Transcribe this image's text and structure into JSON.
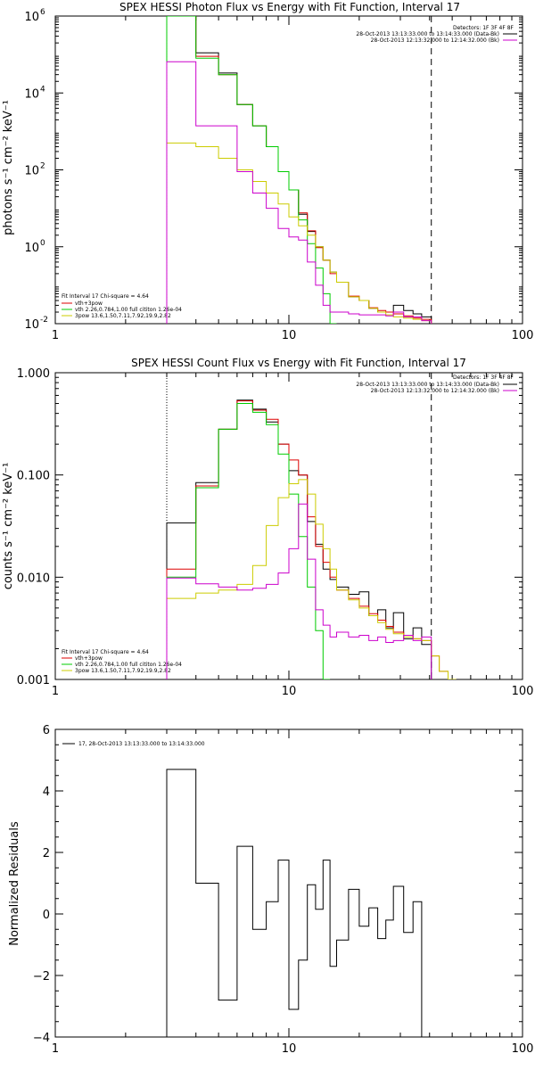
{
  "chart_data": [
    {
      "type": "line",
      "title": "SPEX HESSI Photon Flux vs Energy with Fit Function, Interval 17",
      "ylabel": "photons s⁻¹ cm⁻² keV⁻¹",
      "xscale": "log",
      "yscale": "log",
      "xlim": [
        1,
        100
      ],
      "ylim": [
        0.01,
        1000000
      ],
      "x_ticks": [
        {
          "v": 1,
          "label": "1"
        },
        {
          "v": 10,
          "label": "10"
        },
        {
          "v": 100,
          "label": "100"
        }
      ],
      "y_ticks": [
        {
          "v": 0.01,
          "label": "10",
          "sup": "-2"
        },
        {
          "v": 1,
          "label": "10",
          "sup": "0"
        },
        {
          "v": 100,
          "label": "10",
          "sup": "2"
        },
        {
          "v": 10000,
          "label": "10",
          "sup": "4"
        },
        {
          "v": 1000000,
          "label": "10",
          "sup": "6"
        }
      ],
      "legend_tr": {
        "position": "top-right",
        "header": "Detectors: 1F 3F 4F 8F",
        "entries": [
          {
            "text": "28-Oct-2013 13:13:33.000 to 13:14:33.000 (Data-Bk)",
            "color": "#000000"
          },
          {
            "text": "28-Oct-2013 12:13:32.000 to 12:14:32.000 (Bk)",
            "color": "#cc00cc"
          }
        ]
      },
      "legend_bl": {
        "position": "bottom-left",
        "header": "Fit Interval 17    Chi-square = 4.64",
        "entries": [
          {
            "text": "vth+3pow",
            "color": "#dd0000"
          },
          {
            "text": "vth 2.26,0.784,1.00  full cititon 1.26e-04",
            "color": "#00cc00"
          },
          {
            "text": "3pow 13.6,1.50,7.11,7.92,19.9,2.82",
            "color": "#cccc00"
          }
        ]
      },
      "vlines": [
        {
          "x": 3.0,
          "style": "dotted"
        },
        {
          "x": 40.7,
          "style": "dashed"
        }
      ],
      "edges": [
        3.0,
        4.0,
        5.0,
        6.0,
        7.0,
        8.0,
        9.0,
        10.0,
        11.0,
        12.0,
        13.0,
        14.0,
        15.0,
        16.0,
        18.0,
        20.0,
        22.0,
        24.0,
        26.0,
        28.0,
        31.0,
        34.0,
        37.0,
        40.7,
        44.0,
        48.0
      ],
      "series": [
        {
          "name": "Data-Bk",
          "color": "#000000",
          "values": [
            1000000,
            110000,
            33000,
            5000,
            1400,
            400,
            90,
            30,
            7,
            2.5,
            1,
            0.45,
            0.22,
            0.12,
            0.05,
            0.04,
            0.025,
            0.02,
            0.02,
            0.03,
            0.022,
            0.018,
            0.015
          ]
        },
        {
          "name": "vth+3pow",
          "color": "#dd0000",
          "values": [
            1000000,
            90000,
            30000,
            5000,
            1400,
            400,
            90,
            30,
            7.6,
            2.6,
            0.95,
            0.45,
            0.2,
            0.12,
            0.052,
            0.04,
            0.026,
            0.022,
            0.02,
            0.018,
            0.016,
            0.014,
            0.013
          ]
        },
        {
          "name": "vth",
          "color": "#00cc00",
          "values": [
            1000000,
            80000,
            30000,
            5000,
            1400,
            400,
            90,
            30,
            5,
            1.2,
            0.28,
            0.06,
            0.01
          ]
        },
        {
          "name": "3pow",
          "color": "#cccc00",
          "values": [
            500,
            400,
            200,
            100,
            50,
            25,
            13,
            6,
            3.5,
            2,
            1,
            0.45,
            0.22,
            0.12,
            0.05,
            0.04,
            0.025,
            0.02,
            0.017,
            0.015,
            0.014,
            0.013,
            0.012
          ]
        },
        {
          "name": "Bk",
          "color": "#cc00cc",
          "values": [
            65000,
            1400,
            1400,
            90,
            25,
            10,
            3,
            1.8,
            1.5,
            0.4,
            0.1,
            0.03,
            0.02,
            0.02,
            0.018,
            0.017,
            0.017,
            0.017,
            0.016,
            0.02,
            0.015,
            0.015,
            0.012
          ]
        }
      ]
    },
    {
      "type": "line",
      "title": "SPEX HESSI Count Flux vs Energy with Fit Function, Interval 17",
      "ylabel": "counts s⁻¹ cm⁻² keV⁻¹",
      "xscale": "log",
      "yscale": "log",
      "xlim": [
        1,
        100
      ],
      "ylim": [
        0.001,
        1.0
      ],
      "x_ticks": [
        {
          "v": 1,
          "label": "1"
        },
        {
          "v": 10,
          "label": "10"
        },
        {
          "v": 100,
          "label": "100"
        }
      ],
      "y_ticks": [
        {
          "v": 0.001,
          "label": "0.001"
        },
        {
          "v": 0.01,
          "label": "0.010"
        },
        {
          "v": 0.1,
          "label": "0.100"
        },
        {
          "v": 1.0,
          "label": "1.000"
        }
      ],
      "legend_tr": {
        "position": "top-right",
        "header": "Detectors: 1F 3F 4F 8F",
        "entries": [
          {
            "text": "28-Oct-2013 13:13:33.000 to 13:14:33.000 (Data-Bk)",
            "color": "#000000"
          },
          {
            "text": "28-Oct-2013 12:13:32.000 to 12:14:32.000 (Bk)",
            "color": "#cc00cc"
          }
        ]
      },
      "legend_bl": {
        "position": "bottom-left",
        "header": "Fit Interval 17    Chi-square = 4.64",
        "entries": [
          {
            "text": "vth+3pow",
            "color": "#dd0000"
          },
          {
            "text": "vth 2.26,0.784,1.00  full cititon 1.26e-04",
            "color": "#00cc00"
          },
          {
            "text": "3pow 13.6,1.50,7.11,7.92,19.9,2.82",
            "color": "#cccc00"
          }
        ]
      },
      "vlines": [
        {
          "x": 3.0,
          "style": "dotted"
        },
        {
          "x": 40.7,
          "style": "dashed"
        }
      ],
      "edges": [
        3.0,
        4.0,
        5.0,
        6.0,
        7.0,
        8.0,
        9.0,
        10.0,
        11.0,
        12.0,
        13.0,
        14.0,
        15.0,
        16.0,
        18.0,
        20.0,
        22.0,
        24.0,
        26.0,
        28.0,
        31.0,
        34.0,
        37.0,
        40.7,
        44.0,
        48.0,
        52.0
      ],
      "series": [
        {
          "name": "Data-Bk",
          "color": "#000000",
          "values": [
            0.034,
            0.084,
            0.28,
            0.54,
            0.44,
            0.33,
            0.2,
            0.11,
            0.1,
            0.035,
            0.021,
            0.012,
            0.0095,
            0.008,
            0.0068,
            0.0072,
            0.0042,
            0.0048,
            0.0032,
            0.0045,
            0.0025,
            0.0032,
            0.0022
          ]
        },
        {
          "name": "vth+3pow",
          "color": "#dd0000",
          "values": [
            0.012,
            0.078,
            0.28,
            0.53,
            0.43,
            0.35,
            0.2,
            0.14,
            0.1,
            0.039,
            0.02,
            0.014,
            0.01,
            0.0075,
            0.0062,
            0.0052,
            0.0044,
            0.0038,
            0.0033,
            0.0029,
            0.0027,
            0.0025,
            0.0024,
            0.0017,
            0.0012,
            0.001
          ]
        },
        {
          "name": "vth",
          "color": "#00cc00",
          "values": [
            0.01,
            0.075,
            0.28,
            0.5,
            0.41,
            0.31,
            0.16,
            0.065,
            0.025,
            0.008,
            0.003,
            0.001
          ]
        },
        {
          "name": "3pow",
          "color": "#cccc00",
          "values": [
            0.0062,
            0.007,
            0.0075,
            0.0085,
            0.013,
            0.032,
            0.06,
            0.082,
            0.09,
            0.065,
            0.033,
            0.019,
            0.012,
            0.0075,
            0.006,
            0.005,
            0.0042,
            0.0036,
            0.0031,
            0.0028,
            0.0026,
            0.0025,
            0.0024,
            0.0017,
            0.0012,
            0.001
          ]
        },
        {
          "name": "Bk",
          "color": "#cc00cc",
          "values": [
            0.0098,
            0.0086,
            0.008,
            0.0075,
            0.0078,
            0.0085,
            0.011,
            0.019,
            0.052,
            0.015,
            0.0048,
            0.0034,
            0.0026,
            0.0029,
            0.0026,
            0.0027,
            0.0024,
            0.0026,
            0.0023,
            0.0024,
            0.0027,
            0.0024,
            0.0026
          ]
        }
      ]
    },
    {
      "type": "line",
      "title": "",
      "ylabel": "Normalized Residuals",
      "xscale": "log",
      "yscale": "linear",
      "xlim": [
        1,
        100
      ],
      "ylim": [
        -4,
        6
      ],
      "x_ticks": [
        {
          "v": 1,
          "label": "1"
        },
        {
          "v": 10,
          "label": "10"
        },
        {
          "v": 100,
          "label": "100"
        }
      ],
      "y_ticks": [
        {
          "v": -4,
          "label": "−4"
        },
        {
          "v": -2,
          "label": "−2"
        },
        {
          "v": 0,
          "label": "0"
        },
        {
          "v": 2,
          "label": "2"
        },
        {
          "v": 4,
          "label": "4"
        },
        {
          "v": 6,
          "label": "6"
        }
      ],
      "legend_tl": {
        "position": "top-left",
        "entries": [
          {
            "text": "17, 28-Oct-2013 13:13:33.000 to 13:14:33.000",
            "color": "#000000"
          }
        ]
      },
      "edges": [
        3.0,
        4.0,
        5.0,
        6.0,
        7.0,
        8.0,
        9.0,
        10.0,
        11.0,
        12.0,
        13.0,
        14.0,
        15.0,
        16.0,
        18.0,
        20.0,
        22.0,
        24.0,
        26.0,
        28.0,
        31.0,
        34.0,
        37.0,
        40.7
      ],
      "series": [
        {
          "name": "17, 28-Oct-2013 13:13:33.000 to 13:14:33.000",
          "color": "#000000",
          "values": [
            4.7,
            1.0,
            -2.8,
            2.2,
            -0.5,
            0.4,
            1.75,
            -3.1,
            -1.5,
            0.95,
            0.15,
            1.75,
            -1.7,
            -0.85,
            0.8,
            -0.4,
            0.2,
            -0.8,
            -0.2,
            0.9,
            -0.6,
            0.4
          ]
        }
      ]
    }
  ]
}
